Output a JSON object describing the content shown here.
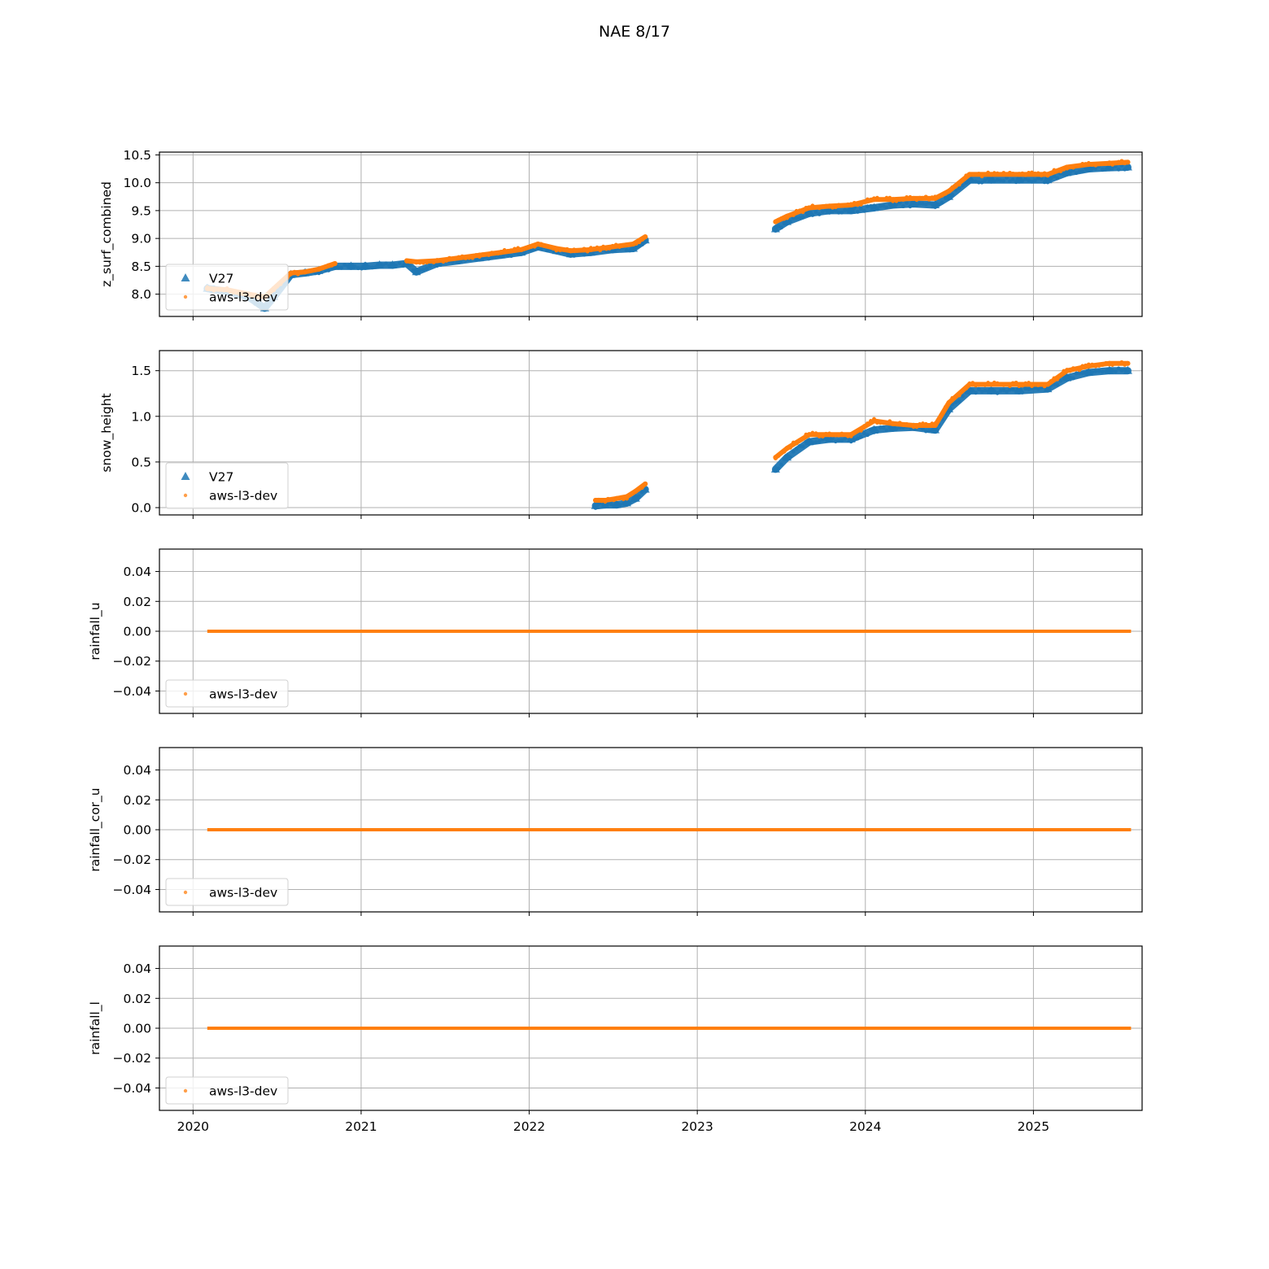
{
  "figure": {
    "title": "NAE 8/17"
  },
  "colors": {
    "v27": "#1f77b4",
    "aws": "#ff7f0e",
    "grid": "#b0b0b0",
    "axis": "#000000"
  },
  "x_ticks": [
    "2020",
    "2021",
    "2022",
    "2023",
    "2024",
    "2025"
  ],
  "legend_labels": {
    "v27": "V27",
    "aws": "aws-l3-dev"
  },
  "chart_data": [
    {
      "type": "scatter",
      "ylabel": "z_surf_combined",
      "xlim": [
        "2019-10-20",
        "2025-08-25"
      ],
      "ylim": [
        7.6,
        10.55
      ],
      "yticks": [
        8.0,
        8.5,
        9.0,
        9.5,
        10.0,
        10.5
      ],
      "ytick_labels": [
        "8.0",
        "8.5",
        "9.0",
        "9.5",
        "10.0",
        "10.5"
      ],
      "grid": true,
      "legend": "lower-left",
      "series": [
        {
          "name": "V27",
          "marker": "triangle",
          "x": [
            "2020-02-01",
            "2020-03-15",
            "2020-05-01",
            "2020-06-05",
            "2020-06-25",
            "2020-08-01",
            "2020-09-01",
            "2020-10-01",
            "2020-11-05",
            "2020-12-10",
            "2021-01-10",
            "2021-02-10",
            "2021-03-10",
            "2021-04-10",
            "2021-05-01",
            "2021-06-15",
            "2021-08-01",
            "2021-09-15",
            "2021-11-01",
            "2021-12-15",
            "2022-01-20",
            "2022-03-01",
            "2022-04-01",
            "2022-05-15",
            "2022-07-01",
            "2022-08-15",
            "2022-09-10",
            "2023-06-20",
            "2023-07-15",
            "2023-09-01",
            "2023-10-15",
            "2023-12-01",
            "2024-01-20",
            "2024-03-01",
            "2024-04-15",
            "2024-06-01",
            "2024-07-01",
            "2024-08-15",
            "2024-10-01",
            "2024-12-01",
            "2025-02-01",
            "2025-03-15",
            "2025-05-01",
            "2025-06-15",
            "2025-07-25"
          ],
          "y": [
            8.1,
            8.05,
            7.95,
            7.75,
            7.95,
            8.35,
            8.38,
            8.42,
            8.5,
            8.5,
            8.5,
            8.52,
            8.52,
            8.55,
            8.4,
            8.55,
            8.6,
            8.65,
            8.7,
            8.75,
            8.85,
            8.78,
            8.72,
            8.75,
            8.8,
            8.82,
            8.97,
            9.17,
            9.3,
            9.45,
            9.5,
            9.5,
            9.55,
            9.6,
            9.62,
            9.6,
            9.75,
            10.05,
            10.05,
            10.05,
            10.05,
            10.18,
            10.25,
            10.27,
            10.28
          ]
        },
        {
          "name": "aws-l3-dev",
          "marker": "dot",
          "x": [
            "2020-02-01",
            "2020-03-15",
            "2020-05-01",
            "2020-06-05",
            "2020-06-25",
            "2020-08-01",
            "2020-09-01",
            "2020-10-01",
            "2020-11-05",
            "2021-04-10",
            "2021-05-01",
            "2021-06-15",
            "2021-08-01",
            "2021-09-15",
            "2021-11-01",
            "2021-12-15",
            "2022-01-20",
            "2022-03-01",
            "2022-04-01",
            "2022-05-15",
            "2022-07-01",
            "2022-08-15",
            "2022-09-10",
            "2023-06-20",
            "2023-07-15",
            "2023-09-01",
            "2023-10-15",
            "2023-12-01",
            "2024-01-20",
            "2024-03-01",
            "2024-04-15",
            "2024-06-01",
            "2024-07-01",
            "2024-08-15",
            "2024-10-01",
            "2024-12-01",
            "2025-02-01",
            "2025-03-15",
            "2025-05-01",
            "2025-06-15",
            "2025-07-25"
          ],
          "y": [
            8.1,
            8.08,
            8.0,
            7.95,
            8.1,
            8.38,
            8.4,
            8.45,
            8.55,
            8.6,
            8.58,
            8.6,
            8.65,
            8.7,
            8.75,
            8.8,
            8.9,
            8.82,
            8.78,
            8.8,
            8.85,
            8.9,
            9.03,
            9.3,
            9.4,
            9.55,
            9.58,
            9.6,
            9.7,
            9.7,
            9.72,
            9.72,
            9.85,
            10.15,
            10.15,
            10.15,
            10.15,
            10.28,
            10.33,
            10.35,
            10.37
          ]
        }
      ]
    },
    {
      "type": "scatter",
      "ylabel": "snow_height",
      "xlim": [
        "2019-10-20",
        "2025-08-25"
      ],
      "ylim": [
        -0.08,
        1.72
      ],
      "yticks": [
        0.0,
        0.5,
        1.0,
        1.5
      ],
      "ytick_labels": [
        "0.0",
        "0.5",
        "1.0",
        "1.5"
      ],
      "grid": true,
      "legend": "lower-left",
      "series": [
        {
          "name": "V27",
          "marker": "triangle",
          "x": [
            "2022-05-25",
            "2022-06-15",
            "2022-07-10",
            "2022-08-01",
            "2022-08-20",
            "2022-09-10",
            "2023-06-20",
            "2023-07-15",
            "2023-09-01",
            "2023-10-15",
            "2023-12-01",
            "2024-01-20",
            "2024-03-01",
            "2024-04-15",
            "2024-06-01",
            "2024-07-01",
            "2024-08-15",
            "2024-10-01",
            "2024-12-01",
            "2025-02-01",
            "2025-03-15",
            "2025-05-01",
            "2025-06-15",
            "2025-07-25"
          ],
          "y": [
            0.02,
            0.03,
            0.03,
            0.05,
            0.1,
            0.2,
            0.42,
            0.55,
            0.72,
            0.75,
            0.75,
            0.85,
            0.87,
            0.88,
            0.85,
            1.08,
            1.28,
            1.28,
            1.28,
            1.3,
            1.42,
            1.48,
            1.5,
            1.5
          ]
        },
        {
          "name": "aws-l3-dev",
          "marker": "dot",
          "x": [
            "2022-05-25",
            "2022-06-15",
            "2022-07-10",
            "2022-08-01",
            "2022-08-20",
            "2022-09-10",
            "2023-06-20",
            "2023-07-15",
            "2023-09-01",
            "2023-10-15",
            "2023-12-01",
            "2024-01-20",
            "2024-03-01",
            "2024-04-15",
            "2024-06-01",
            "2024-07-01",
            "2024-08-15",
            "2024-10-01",
            "2024-12-01",
            "2025-02-01",
            "2025-03-15",
            "2025-05-01",
            "2025-06-15",
            "2025-07-25"
          ],
          "y": [
            0.08,
            0.08,
            0.1,
            0.12,
            0.18,
            0.26,
            0.55,
            0.65,
            0.8,
            0.8,
            0.8,
            0.95,
            0.92,
            0.9,
            0.9,
            1.15,
            1.35,
            1.35,
            1.35,
            1.35,
            1.5,
            1.55,
            1.58,
            1.58
          ]
        }
      ]
    },
    {
      "type": "line",
      "ylabel": "rainfall_u",
      "xlim": [
        "2019-10-20",
        "2025-08-25"
      ],
      "ylim": [
        -0.055,
        0.055
      ],
      "yticks": [
        -0.04,
        -0.02,
        0.0,
        0.02,
        0.04
      ],
      "ytick_labels": [
        "−0.04",
        "−0.02",
        "0.00",
        "0.02",
        "0.04"
      ],
      "grid": true,
      "legend": "lower-left",
      "series": [
        {
          "name": "aws-l3-dev",
          "marker": "dot",
          "x": [
            "2020-02-01",
            "2025-08-01"
          ],
          "y": [
            0,
            0
          ]
        }
      ]
    },
    {
      "type": "line",
      "ylabel": "rainfall_cor_u",
      "xlim": [
        "2019-10-20",
        "2025-08-25"
      ],
      "ylim": [
        -0.055,
        0.055
      ],
      "yticks": [
        -0.04,
        -0.02,
        0.0,
        0.02,
        0.04
      ],
      "ytick_labels": [
        "−0.04",
        "−0.02",
        "0.00",
        "0.02",
        "0.04"
      ],
      "grid": true,
      "legend": "lower-left",
      "series": [
        {
          "name": "aws-l3-dev",
          "marker": "dot",
          "x": [
            "2020-02-01",
            "2025-08-01"
          ],
          "y": [
            0,
            0
          ]
        }
      ]
    },
    {
      "type": "line",
      "ylabel": "rainfall_l",
      "xlim": [
        "2019-10-20",
        "2025-08-25"
      ],
      "ylim": [
        -0.055,
        0.055
      ],
      "yticks": [
        -0.04,
        -0.02,
        0.0,
        0.02,
        0.04
      ],
      "ytick_labels": [
        "−0.04",
        "−0.02",
        "0.00",
        "0.02",
        "0.04"
      ],
      "grid": true,
      "legend": "lower-left",
      "series": [
        {
          "name": "aws-l3-dev",
          "marker": "dot",
          "x": [
            "2020-02-01",
            "2025-08-01"
          ],
          "y": [
            0,
            0
          ]
        }
      ]
    }
  ]
}
